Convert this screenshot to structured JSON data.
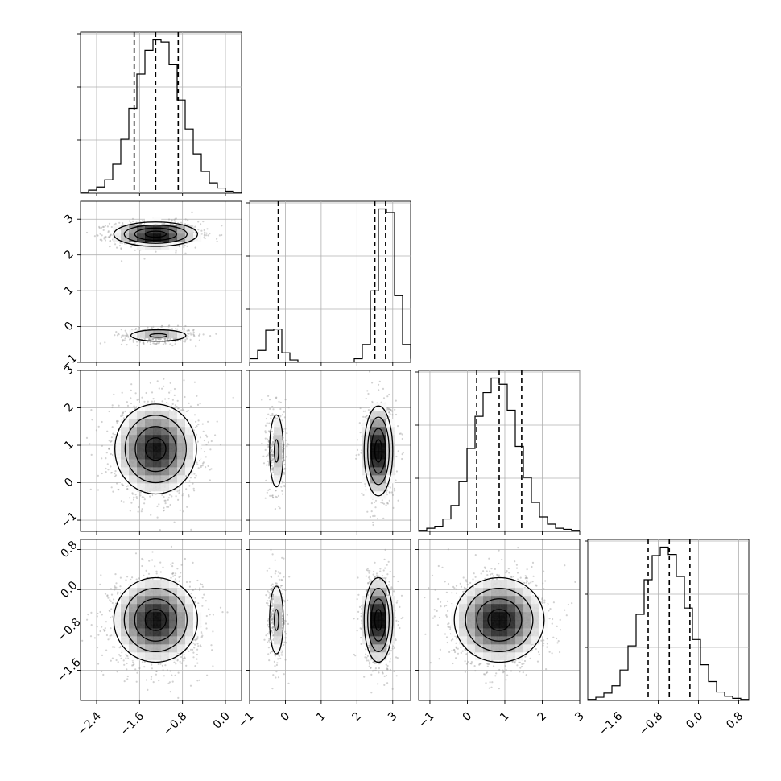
{
  "chart_data": {
    "type": "corner",
    "grid": true,
    "xlabel": "",
    "ylabel": "",
    "dimensions": [
      {
        "range": [
          -2.7,
          0.3
        ],
        "ticks": [
          -2.4,
          -1.6,
          -0.8,
          0.0
        ],
        "tick_labels": [
          "−2.4",
          "−1.6",
          "−0.8",
          "0.0"
        ],
        "quantiles": [
          -1.7,
          -1.3,
          -0.88
        ]
      },
      {
        "range": [
          -1.0,
          3.5
        ],
        "ticks": [
          -1,
          0,
          1,
          2,
          3
        ],
        "tick_labels": [
          "−1",
          "0",
          "1",
          "2",
          "3"
        ],
        "quantiles": [
          -0.2,
          2.5,
          2.8
        ]
      },
      {
        "range": [
          -1.3,
          3.0
        ],
        "ticks": [
          -1,
          0,
          1,
          2,
          3
        ],
        "tick_labels": [
          "−1",
          "0",
          "1",
          "2",
          "3"
        ],
        "quantiles": [
          0.25,
          0.85,
          1.45
        ]
      },
      {
        "range": [
          -2.2,
          1.0
        ],
        "ticks": [
          -1.6,
          -0.8,
          0.0,
          0.8
        ],
        "tick_labels": [
          "−1.6",
          "−0.8",
          "0.0",
          "0.8"
        ],
        "quantiles": [
          -1.0,
          -0.58,
          -0.17
        ]
      }
    ],
    "histograms": [
      {
        "dim": 0,
        "bin_edges": [
          -2.7,
          -2.55,
          -2.4,
          -2.25,
          -2.1,
          -1.95,
          -1.8,
          -1.65,
          -1.5,
          -1.35,
          -1.2,
          -1.05,
          -0.9,
          -0.75,
          -0.6,
          -0.45,
          -0.3,
          -0.15,
          0.0,
          0.15,
          0.3
        ],
        "counts": [
          1,
          3,
          6,
          13,
          28,
          52,
          82,
          115,
          138,
          148,
          146,
          124,
          90,
          62,
          38,
          21,
          10,
          5,
          2,
          1
        ]
      },
      {
        "dim": 1,
        "bin_edges": [
          -1.0,
          -0.775,
          -0.55,
          -0.325,
          -0.1,
          0.125,
          0.35,
          0.575,
          0.8,
          1.025,
          1.25,
          1.475,
          1.7,
          1.925,
          2.15,
          2.375,
          2.6,
          2.825,
          3.05,
          3.275,
          3.5
        ],
        "counts": [
          3,
          10,
          27,
          28,
          8,
          2,
          0,
          0,
          0,
          0,
          0,
          0,
          0,
          3,
          15,
          60,
          129,
          126,
          56,
          15,
          3
        ]
      },
      {
        "dim": 2,
        "bin_edges": [
          -1.3,
          -1.085,
          -0.87,
          -0.655,
          -0.44,
          -0.225,
          -0.01,
          0.205,
          0.42,
          0.635,
          0.85,
          1.065,
          1.28,
          1.495,
          1.71,
          1.925,
          2.14,
          2.355,
          2.57,
          2.785,
          3.0
        ],
        "counts": [
          1,
          3,
          5,
          12,
          25,
          48,
          80,
          111,
          134,
          148,
          142,
          117,
          82,
          52,
          28,
          14,
          7,
          3,
          2,
          1
        ]
      },
      {
        "dim": 3,
        "bin_edges": [
          -2.2,
          -2.04,
          -1.88,
          -1.72,
          -1.56,
          -1.4,
          -1.24,
          -1.08,
          -0.92,
          -0.76,
          -0.6,
          -0.44,
          -0.28,
          -0.12,
          0.04,
          0.2,
          0.36,
          0.52,
          0.68,
          0.84,
          1.0
        ],
        "counts": [
          1,
          3,
          7,
          14,
          29,
          52,
          82,
          115,
          138,
          146,
          139,
          118,
          88,
          58,
          34,
          18,
          8,
          4,
          2,
          1
        ]
      }
    ],
    "joint_2d": [
      {
        "x_dim": 0,
        "y_dim": 1,
        "modes": [
          {
            "center": [
              -1.3,
              2.58
            ],
            "spread": [
              0.39,
              0.17
            ],
            "peak": 1.0
          },
          {
            "center": [
              -1.25,
              -0.25
            ],
            "spread": [
              0.32,
              0.1
            ],
            "peak": 0.38
          }
        ]
      },
      {
        "x_dim": 0,
        "y_dim": 2,
        "modes": [
          {
            "center": [
              -1.3,
              0.9
            ],
            "spread": [
              0.38,
              0.6
            ],
            "peak": 1.0
          }
        ]
      },
      {
        "x_dim": 0,
        "y_dim": 3,
        "modes": [
          {
            "center": [
              -1.3,
              -0.6
            ],
            "spread": [
              0.39,
              0.42
            ],
            "peak": 1.0
          }
        ]
      },
      {
        "x_dim": 1,
        "y_dim": 2,
        "modes": [
          {
            "center": [
              -0.25,
              0.85
            ],
            "spread": [
              0.12,
              0.6
            ],
            "peak": 0.32
          },
          {
            "center": [
              2.6,
              0.85
            ],
            "spread": [
              0.2,
              0.6
            ],
            "peak": 1.0
          }
        ]
      },
      {
        "x_dim": 1,
        "y_dim": 3,
        "modes": [
          {
            "center": [
              -0.25,
              -0.6
            ],
            "spread": [
              0.12,
              0.42
            ],
            "peak": 0.32
          },
          {
            "center": [
              2.6,
              -0.6
            ],
            "spread": [
              0.2,
              0.42
            ],
            "peak": 1.0
          }
        ]
      },
      {
        "x_dim": 2,
        "y_dim": 3,
        "modes": [
          {
            "center": [
              0.85,
              -0.6
            ],
            "spread": [
              0.6,
              0.42
            ],
            "peak": 1.0
          }
        ]
      }
    ]
  }
}
